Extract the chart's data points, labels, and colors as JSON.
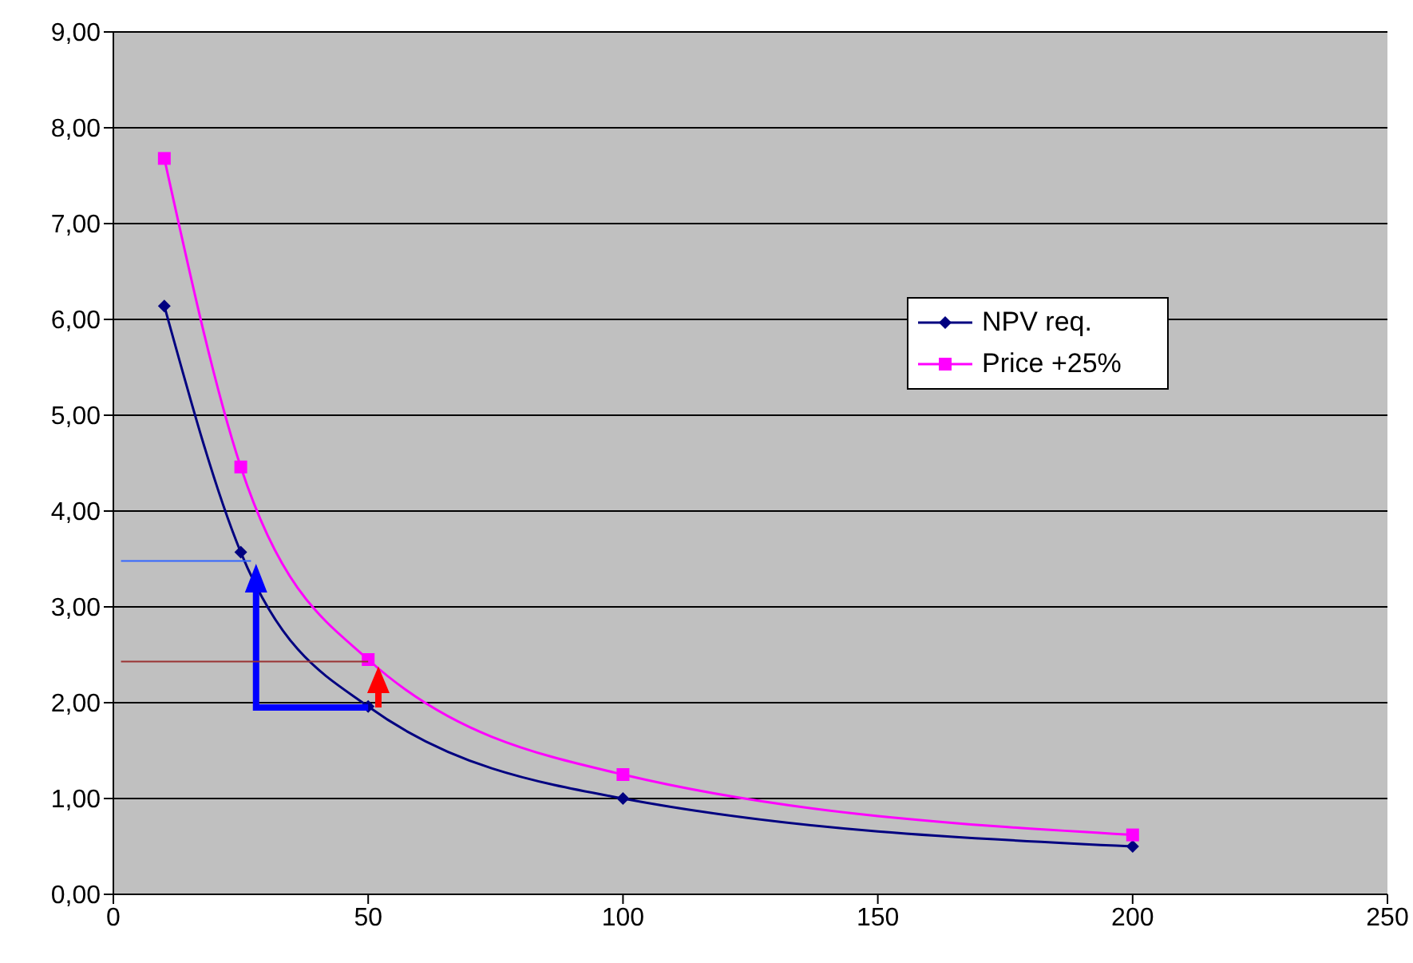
{
  "chart_data": {
    "type": "line",
    "x": [
      10,
      25,
      50,
      100,
      200
    ],
    "series": [
      {
        "name": "NPV req.",
        "color": "#000080",
        "values": [
          6.14,
          3.57,
          1.96,
          1.0,
          0.5
        ],
        "marker": "diamond"
      },
      {
        "name": "Price +25%",
        "color": "#ff00ff",
        "values": [
          7.68,
          4.46,
          2.45,
          1.25,
          0.62
        ],
        "marker": "square"
      }
    ],
    "xlim": [
      0,
      250
    ],
    "xticks": [
      0,
      50,
      100,
      150,
      200,
      250
    ],
    "ylim": [
      0,
      9
    ],
    "yticks": [
      {
        "value": 0,
        "label": "0,00"
      },
      {
        "value": 1,
        "label": "1,00"
      },
      {
        "value": 2,
        "label": "2,00"
      },
      {
        "value": 3,
        "label": "3,00"
      },
      {
        "value": 4,
        "label": "4,00"
      },
      {
        "value": 5,
        "label": "5,00"
      },
      {
        "value": 6,
        "label": "6,00"
      },
      {
        "value": 7,
        "label": "7,00"
      },
      {
        "value": 8,
        "label": "8,00"
      },
      {
        "value": 9,
        "label": "9,00"
      }
    ],
    "grid": "y",
    "legend": "right",
    "line_style": "solid"
  }
}
